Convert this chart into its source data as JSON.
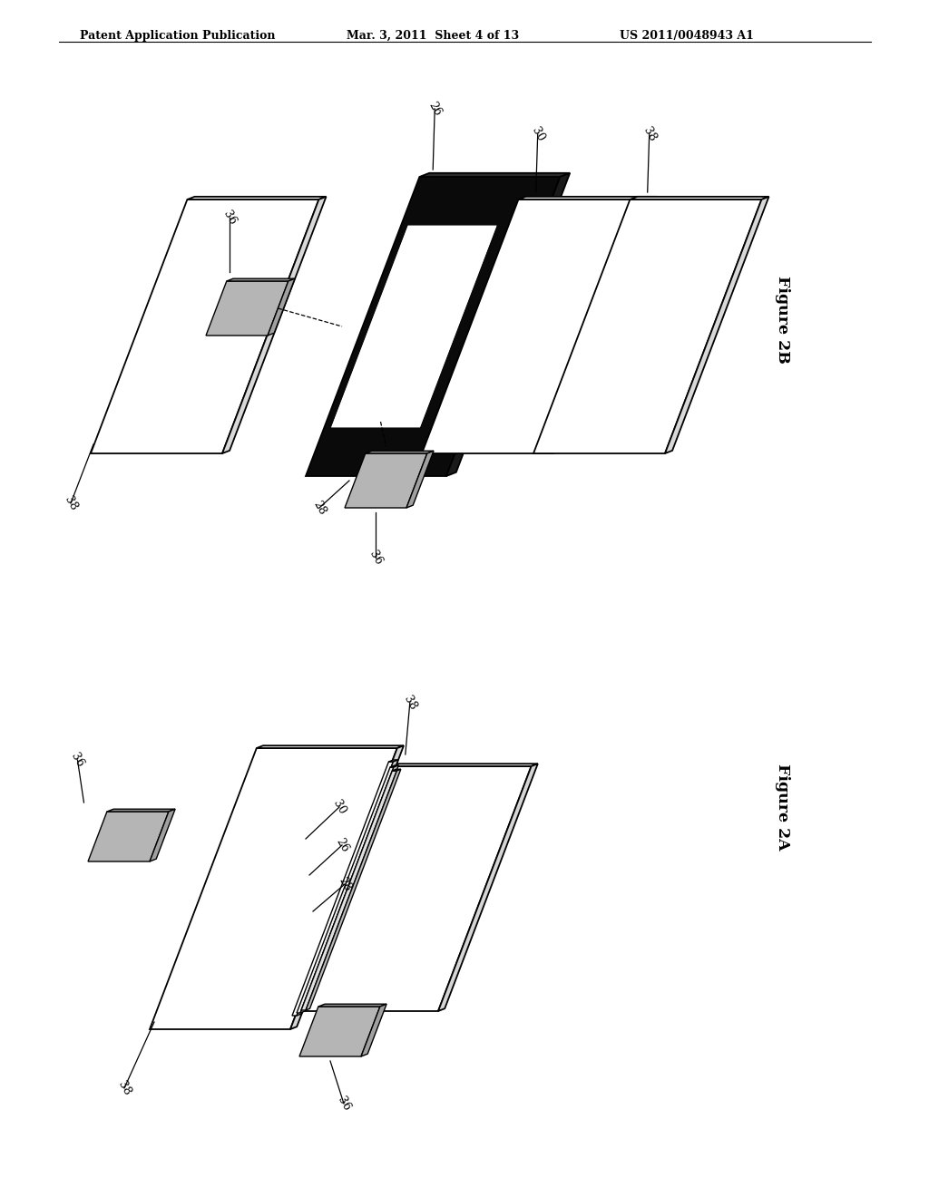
{
  "header_left": "Patent Application Publication",
  "header_mid": "Mar. 3, 2011  Sheet 4 of 13",
  "header_right": "US 2011/0048943 A1",
  "fig2b_label": "Figure 2B",
  "fig2a_label": "Figure 2A",
  "bg_color": "#ffffff"
}
